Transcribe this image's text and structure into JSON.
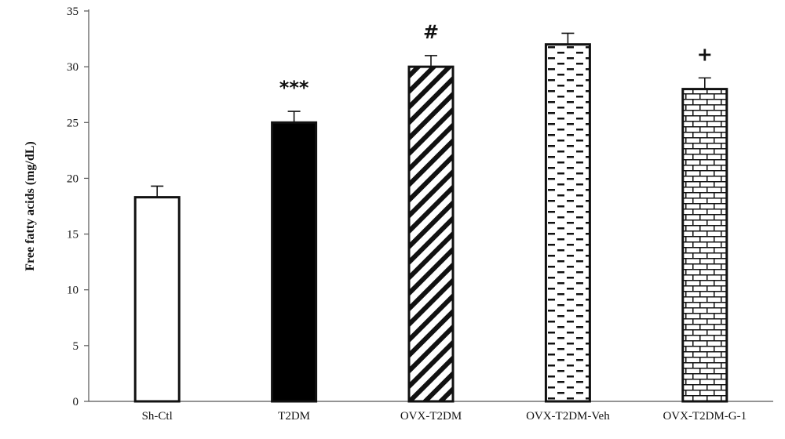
{
  "chart_data": {
    "type": "bar",
    "ylabel": "Free fatty acids (mg/dL)",
    "xlabel": "",
    "ylim": [
      0,
      35
    ],
    "yticks": [
      0,
      5,
      10,
      15,
      20,
      25,
      30,
      35
    ],
    "grid": false,
    "legend": "none",
    "categories": [
      "Sh-Ctl",
      "T2DM",
      "OVX-T2DM",
      "OVX-T2DM-Veh",
      "OVX-T2DM-G-1"
    ],
    "values": [
      18.3,
      25.0,
      30.0,
      32.0,
      28.0
    ],
    "errors": [
      1.0,
      1.0,
      1.0,
      1.0,
      1.0
    ],
    "fills": [
      "white",
      "black",
      "diagonal-stripes",
      "dashes",
      "bricks"
    ],
    "annotations": [
      "",
      "***",
      "#",
      "",
      "+"
    ]
  }
}
